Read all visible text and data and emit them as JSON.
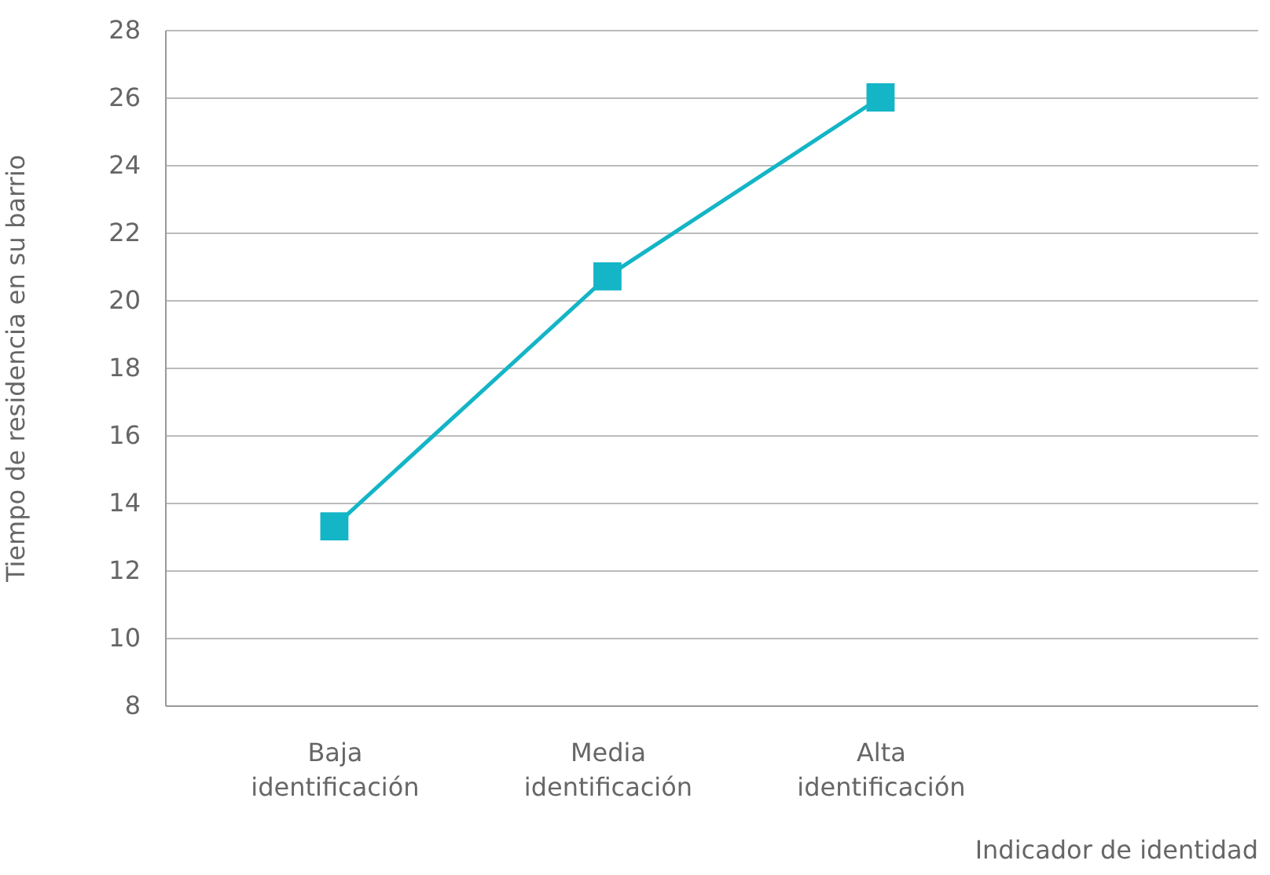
{
  "chart_data": {
    "type": "line",
    "xlabel": "Indicador de identidad",
    "ylabel": "Tiempo de residencia en su barrio",
    "categories": [
      "Baja identificación",
      "Media identificación",
      "Alta identificación"
    ],
    "series": [
      {
        "color": "#13b5c6",
        "values": [
          13.3,
          20.7,
          26
        ]
      }
    ],
    "ylim": [
      8,
      28
    ],
    "yticks": [
      8,
      10,
      12,
      14,
      16,
      18,
      20,
      22,
      24,
      26,
      28
    ],
    "grid": "y",
    "marker": "square",
    "line_style": "solid"
  }
}
